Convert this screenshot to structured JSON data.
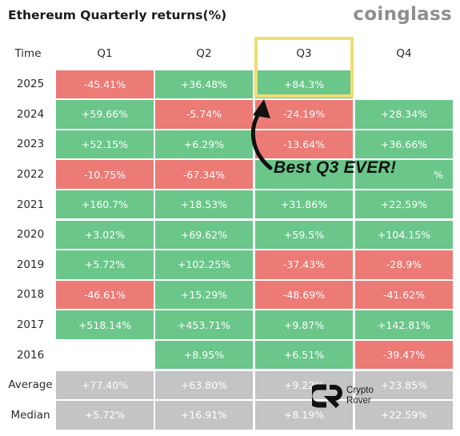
{
  "title": "Ethereum Quarterly returns(%)",
  "brand": "coinglass",
  "annotation": "Best Q3 EVER!",
  "watermark": {
    "line1": "Crypto",
    "line2": "Rover"
  },
  "colors": {
    "positive": "#6bc68a",
    "negative": "#ec7b76",
    "summary": "#c4c4c5",
    "highlight": "#f1de72"
  },
  "chart_data": {
    "type": "table",
    "corner_header": "Time",
    "columns": [
      "Q1",
      "Q2",
      "Q3",
      "Q4"
    ],
    "rows": [
      {
        "label": "2025",
        "cells": [
          {
            "text": "-45.41%",
            "value": -45.41
          },
          {
            "text": "+36.48%",
            "value": 36.48
          },
          {
            "text": "+84.3%",
            "value": 84.3
          },
          null
        ]
      },
      {
        "label": "2024",
        "cells": [
          {
            "text": "+59.66%",
            "value": 59.66
          },
          {
            "text": "-5.74%",
            "value": -5.74
          },
          {
            "text": "-24.19%",
            "value": -24.19
          },
          {
            "text": "+28.34%",
            "value": 28.34
          }
        ]
      },
      {
        "label": "2023",
        "cells": [
          {
            "text": "+52.15%",
            "value": 52.15
          },
          {
            "text": "+6.29%",
            "value": 6.29
          },
          {
            "text": "-13.64%",
            "value": -13.64
          },
          {
            "text": "+36.66%",
            "value": 36.66
          }
        ]
      },
      {
        "label": "2022",
        "cells": [
          {
            "text": "-10.75%",
            "value": -10.75
          },
          {
            "text": "-67.34%",
            "value": -67.34
          },
          {
            "text": "",
            "value": null
          },
          {
            "text": "%",
            "value": null
          }
        ]
      },
      {
        "label": "2021",
        "cells": [
          {
            "text": "+160.7%",
            "value": 160.7
          },
          {
            "text": "+18.53%",
            "value": 18.53
          },
          {
            "text": "+31.86%",
            "value": 31.86
          },
          {
            "text": "+22.59%",
            "value": 22.59
          }
        ]
      },
      {
        "label": "2020",
        "cells": [
          {
            "text": "+3.02%",
            "value": 3.02
          },
          {
            "text": "+69.62%",
            "value": 69.62
          },
          {
            "text": "+59.5%",
            "value": 59.5
          },
          {
            "text": "+104.15%",
            "value": 104.15
          }
        ]
      },
      {
        "label": "2019",
        "cells": [
          {
            "text": "+5.72%",
            "value": 5.72
          },
          {
            "text": "+102.25%",
            "value": 102.25
          },
          {
            "text": "-37.43%",
            "value": -37.43
          },
          {
            "text": "-28.9%",
            "value": -28.9
          }
        ]
      },
      {
        "label": "2018",
        "cells": [
          {
            "text": "-46.61%",
            "value": -46.61
          },
          {
            "text": "+15.29%",
            "value": 15.29
          },
          {
            "text": "-48.69%",
            "value": -48.69
          },
          {
            "text": "-41.62%",
            "value": -41.62
          }
        ]
      },
      {
        "label": "2017",
        "cells": [
          {
            "text": "+518.14%",
            "value": 518.14
          },
          {
            "text": "+453.71%",
            "value": 453.71
          },
          {
            "text": "+9.87%",
            "value": 9.87
          },
          {
            "text": "+142.81%",
            "value": 142.81
          }
        ]
      },
      {
        "label": "2016",
        "cells": [
          null,
          {
            "text": "+8.95%",
            "value": 8.95
          },
          {
            "text": "+6.51%",
            "value": 6.51
          },
          {
            "text": "-39.47%",
            "value": -39.47
          }
        ]
      },
      {
        "label": "Average",
        "summary": true,
        "cells": [
          {
            "text": "+77.40%",
            "value": 77.4
          },
          {
            "text": "+63.80%",
            "value": 63.8
          },
          {
            "text": "+9.22%",
            "value": 9.22
          },
          {
            "text": "+23.85%",
            "value": 23.85
          }
        ]
      },
      {
        "label": "Median",
        "summary": true,
        "cells": [
          {
            "text": "+5.72%",
            "value": 5.72
          },
          {
            "text": "+16.91%",
            "value": 16.91
          },
          {
            "text": "+8.19%",
            "value": 8.19
          },
          {
            "text": "+22.59%",
            "value": 22.59
          }
        ]
      }
    ],
    "highlight": {
      "column": "Q3",
      "row": "2025"
    }
  }
}
